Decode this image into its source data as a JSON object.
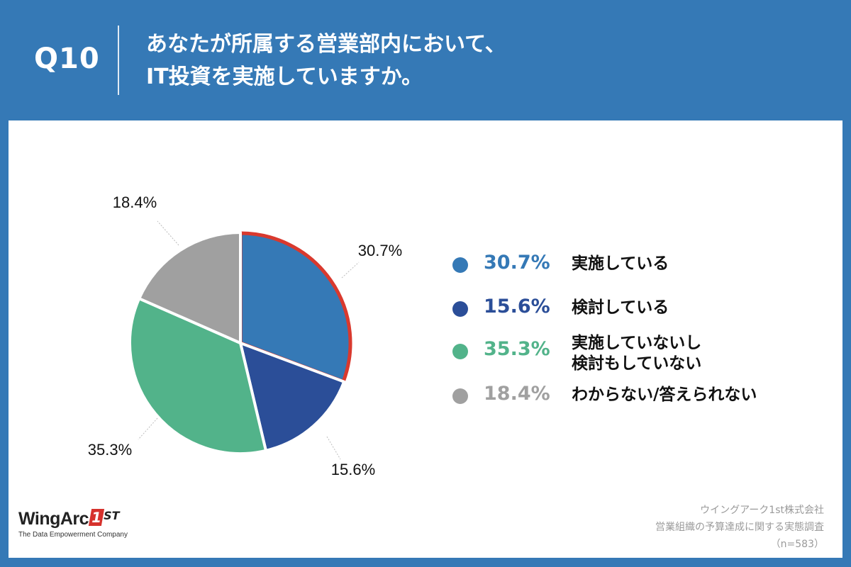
{
  "header": {
    "question_number": "Q10",
    "question_line1": "あなたが所属する営業部内において、",
    "question_line2": "IT投資を実施していますか。"
  },
  "chart_data": {
    "type": "pie",
    "start_angle_deg": 0,
    "direction": "clockwise",
    "highlighted_slice": 0,
    "highlight_color": "#d9392e",
    "slices": [
      {
        "label": "実施している",
        "value": 30.7,
        "value_label": "30.7%",
        "color": "#3579b6",
        "legend_pct_color": "#3579b6"
      },
      {
        "label": "検討している",
        "value": 15.6,
        "value_label": "15.6%",
        "color": "#2b4e98",
        "legend_pct_color": "#2b4e98"
      },
      {
        "label": "実施していないし\n検討もしていない",
        "label_lines": [
          "実施していないし",
          "検討もしていない"
        ],
        "value": 35.3,
        "value_label": "35.3%",
        "color": "#52b38a",
        "legend_pct_color": "#52b38a"
      },
      {
        "label": "わからない/答えられない",
        "value": 18.4,
        "value_label": "18.4%",
        "color": "#a0a0a0",
        "legend_pct_color": "#a0a0a0"
      }
    ]
  },
  "branding": {
    "logo_text": "WingArc",
    "logo_badge": "1",
    "logo_suffix": "ST",
    "tagline": "The Data Empowerment Company"
  },
  "source": {
    "company": "ウイングアーク1st株式会社",
    "survey": "営業組織の予算達成に関する実態調査",
    "sample": "（n=583）"
  }
}
